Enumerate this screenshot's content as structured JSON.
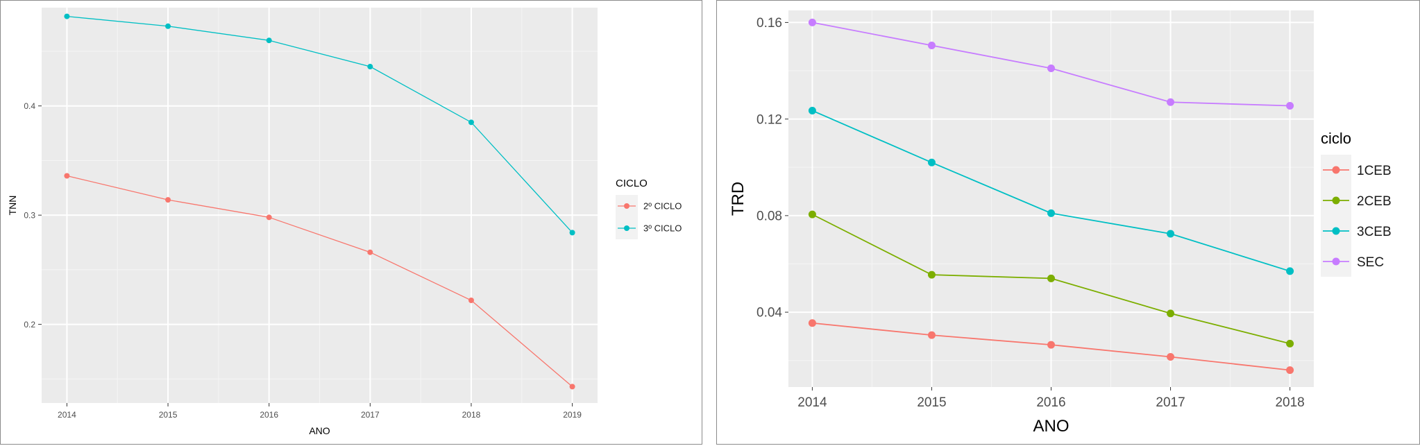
{
  "chart_data": [
    {
      "type": "line",
      "title": "",
      "xlabel": "ANO",
      "ylabel": "TNN",
      "x": [
        2014,
        2015,
        2016,
        2017,
        2018,
        2019
      ],
      "xticks": [
        "2014",
        "2015",
        "2016",
        "2017",
        "2018",
        "2019"
      ],
      "xlim": [
        2013.75,
        2019.25
      ],
      "ylim": [
        0.128,
        0.49
      ],
      "yticks": [
        0.2,
        0.3,
        0.4
      ],
      "ytick_labels": [
        "0.2",
        "0.3",
        "0.4"
      ],
      "grid": true,
      "legend": {
        "title": "CICLO",
        "position": "right"
      },
      "series": [
        {
          "name": "2º CICLO",
          "color": "#f8766d",
          "values": [
            0.336,
            0.314,
            0.298,
            0.266,
            0.222,
            0.143
          ]
        },
        {
          "name": "3º CICLO",
          "color": "#00bfc4",
          "values": [
            0.482,
            0.473,
            0.46,
            0.436,
            0.385,
            0.284
          ]
        }
      ]
    },
    {
      "type": "line",
      "title": "",
      "xlabel": "ANO",
      "ylabel": "TRD",
      "x": [
        2014,
        2015,
        2016,
        2017,
        2018
      ],
      "xticks": [
        "2014",
        "2015",
        "2016",
        "2017",
        "2018"
      ],
      "xlim": [
        2013.8,
        2018.2
      ],
      "ylim": [
        0.009,
        0.165
      ],
      "yticks": [
        0.04,
        0.08,
        0.12,
        0.16
      ],
      "ytick_labels": [
        "0.04",
        "0.08",
        "0.12",
        "0.16"
      ],
      "grid": true,
      "legend": {
        "title": "ciclo",
        "position": "right"
      },
      "series": [
        {
          "name": "1CEB",
          "color": "#f8766d",
          "values": [
            0.0355,
            0.0305,
            0.0265,
            0.0215,
            0.016
          ]
        },
        {
          "name": "2CEB",
          "color": "#7cae00",
          "values": [
            0.0805,
            0.0555,
            0.054,
            0.0395,
            0.027
          ]
        },
        {
          "name": "3CEB",
          "color": "#00bfc4",
          "values": [
            0.1235,
            0.102,
            0.081,
            0.0725,
            0.057
          ]
        },
        {
          "name": "SEC",
          "color": "#c77cff",
          "values": [
            0.16,
            0.1505,
            0.141,
            0.127,
            0.1255
          ]
        }
      ]
    }
  ]
}
